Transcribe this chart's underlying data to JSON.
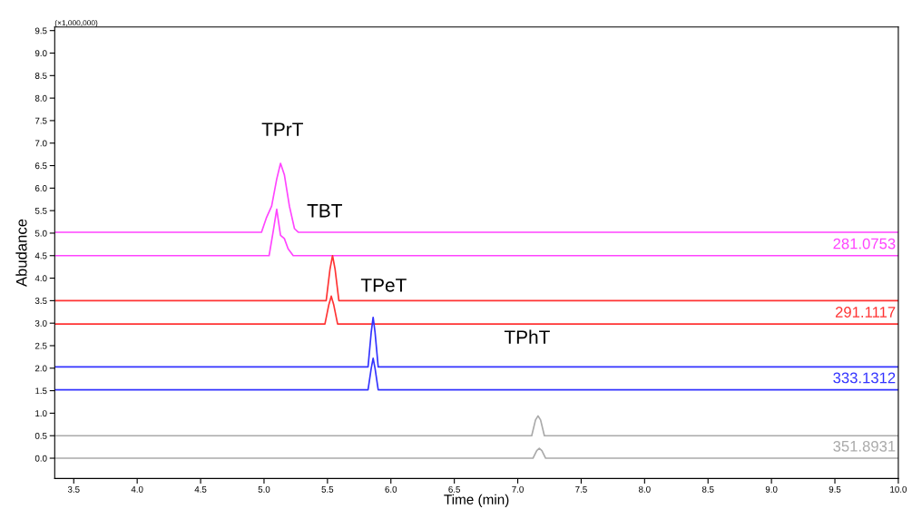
{
  "chart_data": {
    "type": "line",
    "xlabel": "Time (min)",
    "ylabel": "Abudance",
    "annotations": [
      "(×1,000,000)",
      "TPrT",
      "TBT",
      "TPeT",
      "TPhT"
    ],
    "series": [
      {
        "color": "#ff44ff",
        "x": [
          3.35,
          4.98,
          5.02,
          5.06,
          5.1,
          5.13,
          5.16,
          5.2,
          5.24,
          5.27,
          10.0
        ],
        "values": [
          5.02,
          5.02,
          5.35,
          5.6,
          6.2,
          6.55,
          6.3,
          5.6,
          5.1,
          5.02,
          5.02
        ]
      },
      {
        "name": "281.0753",
        "color": "#ff44ff",
        "x": [
          3.35,
          5.04,
          5.07,
          5.1,
          5.13,
          5.16,
          5.19,
          5.23,
          10.0
        ],
        "values": [
          4.5,
          4.5,
          5.0,
          5.53,
          4.95,
          4.88,
          4.65,
          4.5,
          4.5
        ]
      },
      {
        "color": "#ff3333",
        "x": [
          3.35,
          5.49,
          5.52,
          5.54,
          5.56,
          5.59,
          10.0
        ],
        "values": [
          3.5,
          3.5,
          4.2,
          4.5,
          4.2,
          3.5,
          3.5
        ]
      },
      {
        "name": "291.1117",
        "color": "#ff3333",
        "x": [
          3.35,
          5.48,
          5.51,
          5.53,
          5.55,
          5.58,
          10.0
        ],
        "values": [
          2.98,
          2.98,
          3.4,
          3.6,
          3.4,
          2.98,
          2.98
        ]
      },
      {
        "color": "#3333ff",
        "x": [
          3.35,
          5.82,
          5.845,
          5.86,
          5.875,
          5.9,
          10.0
        ],
        "values": [
          2.03,
          2.03,
          2.8,
          3.13,
          2.8,
          2.03,
          2.03
        ]
      },
      {
        "name": "333.1312",
        "color": "#3333ff",
        "x": [
          3.35,
          5.82,
          5.845,
          5.86,
          5.875,
          5.9,
          10.0
        ],
        "values": [
          1.52,
          1.52,
          2.0,
          2.22,
          2.0,
          1.52,
          1.52
        ]
      },
      {
        "color": "#aaaaaa",
        "x": [
          3.35,
          7.11,
          7.14,
          7.16,
          7.18,
          7.21,
          10.0
        ],
        "values": [
          0.5,
          0.5,
          0.85,
          0.94,
          0.85,
          0.5,
          0.5
        ]
      },
      {
        "name": "351.8931",
        "color": "#aaaaaa",
        "x": [
          3.35,
          7.12,
          7.15,
          7.17,
          7.19,
          7.22,
          10.0
        ],
        "values": [
          0,
          0,
          0.17,
          0.22,
          0.17,
          0,
          0
        ]
      }
    ],
    "xlim": [
      3.35,
      10.0
    ],
    "xticks": [
      {
        "value": 3.5,
        "label": "3.5"
      },
      {
        "value": 4,
        "label": "4.0"
      },
      {
        "value": 4.5,
        "label": "4.5"
      },
      {
        "value": 5,
        "label": "5.0"
      },
      {
        "value": 5.5,
        "label": "5.5"
      },
      {
        "value": 6,
        "label": "6.0"
      },
      {
        "value": 6.5,
        "label": "6.5"
      },
      {
        "value": 7,
        "label": "7.0"
      },
      {
        "value": 7.5,
        "label": "7.5"
      },
      {
        "value": 8,
        "label": "8.0"
      },
      {
        "value": 8.5,
        "label": "8.5"
      },
      {
        "value": 9,
        "label": "9.0"
      },
      {
        "value": 9.5,
        "label": "9.5"
      },
      {
        "value": 10,
        "label": "10.0"
      }
    ],
    "ylim": [
      -0.45,
      9.58
    ],
    "yticks": [
      {
        "value": 0,
        "label": "0.0"
      },
      {
        "value": 0.5,
        "label": "0.5"
      },
      {
        "value": 1,
        "label": "1.0"
      },
      {
        "value": 1.5,
        "label": "1.5"
      },
      {
        "value": 2,
        "label": "2.0"
      },
      {
        "value": 2.5,
        "label": "2.5"
      },
      {
        "value": 3,
        "label": "3.0"
      },
      {
        "value": 3.5,
        "label": "3.5"
      },
      {
        "value": 4,
        "label": "4.0"
      },
      {
        "value": 4.5,
        "label": "4.5"
      },
      {
        "value": 5,
        "label": "5.0"
      },
      {
        "value": 5.5,
        "label": "5.5"
      },
      {
        "value": 6,
        "label": "6.0"
      },
      {
        "value": 6.5,
        "label": "6.5"
      },
      {
        "value": 7,
        "label": "7.0"
      },
      {
        "value": 7.5,
        "label": "7.5"
      },
      {
        "value": 8,
        "label": "8.0"
      },
      {
        "value": 8.5,
        "label": "8.5"
      },
      {
        "value": 9,
        "label": "9.0"
      },
      {
        "value": 9.5,
        "label": "9.5"
      }
    ],
    "grid": false,
    "legend": false,
    "marker": "none",
    "line_style": "solid"
  }
}
